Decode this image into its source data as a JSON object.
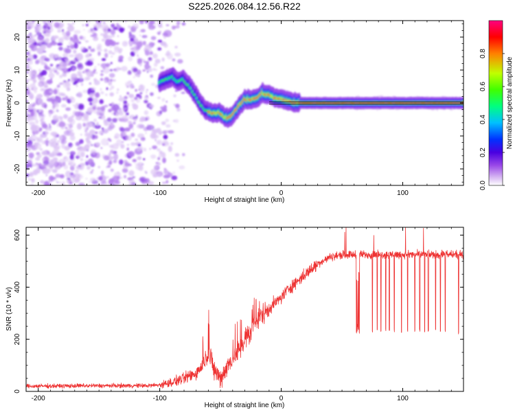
{
  "chart_data": [
    {
      "type": "heatmap",
      "title": "S225.2026.084.12.56.R22",
      "xlabel": "Height of straight line (km)",
      "ylabel": "Frequency (Hz)",
      "xlim": [
        -210,
        150
      ],
      "ylim": [
        -25,
        25
      ],
      "xticks": [
        -200,
        -100,
        0,
        100
      ],
      "yticks": [
        -20,
        -10,
        0,
        10,
        20
      ],
      "colorbar": {
        "label": "Normalized spectral amplitude",
        "range": [
          0,
          1
        ],
        "ticks": [
          0.0,
          0.2,
          0.4,
          0.6,
          0.8
        ],
        "colors": [
          "#ffffff",
          "#d6b6f2",
          "#9b4be8",
          "#4a00e0",
          "#0032ff",
          "#00c0ff",
          "#00ff80",
          "#40ff00",
          "#c0ff00",
          "#ff8000",
          "#ff0000",
          "#ff0080"
        ]
      },
      "ridge": {
        "x": [
          -100,
          -95,
          -90,
          -85,
          -80,
          -75,
          -70,
          -65,
          -60,
          -55,
          -50,
          -45,
          -40,
          -35,
          -30,
          -25,
          -20,
          -15,
          -10,
          -5,
          0,
          5,
          10,
          15,
          20,
          40,
          60,
          80,
          100,
          120,
          150
        ],
        "y": [
          6,
          7,
          8,
          6.5,
          7,
          5,
          2,
          -1,
          -2.5,
          -3,
          -3,
          -4.5,
          -4,
          -1,
          1,
          1,
          1.5,
          3,
          2.5,
          1.5,
          1.2,
          0.8,
          0.3,
          0,
          0,
          0,
          0,
          0,
          0,
          0,
          0
        ]
      },
      "reference_line": {
        "x": [
          -10,
          150
        ],
        "y": 0
      }
    },
    {
      "type": "line",
      "xlabel": "Height of straight line (km)",
      "ylabel": "SNR (10 * v/v)",
      "xlim": [
        -210,
        150
      ],
      "ylim": [
        0,
        630
      ],
      "xticks": [
        -200,
        -100,
        0,
        100
      ],
      "yticks": [
        0,
        200,
        400,
        600
      ],
      "color": "#ee3333",
      "envelope": {
        "x": [
          -210,
          -150,
          -110,
          -100,
          -90,
          -80,
          -70,
          -65,
          -60,
          -55,
          -50,
          -45,
          -40,
          -35,
          -30,
          -25,
          -20,
          -15,
          -10,
          -5,
          0,
          5,
          10,
          20,
          30,
          40,
          50,
          60,
          70,
          80,
          90,
          100,
          110,
          120,
          130,
          140,
          150
        ],
        "y": [
          20,
          22,
          22,
          25,
          35,
          50,
          70,
          100,
          150,
          80,
          50,
          90,
          130,
          160,
          200,
          230,
          270,
          300,
          320,
          340,
          360,
          390,
          410,
          450,
          490,
          515,
          525,
          525,
          525,
          525,
          525,
          525,
          525,
          525,
          525,
          525,
          525
        ]
      },
      "dropouts": [
        {
          "x": 62,
          "y": 220
        },
        {
          "x": 63,
          "y": 215
        },
        {
          "x": 64,
          "y": 225
        },
        {
          "x": 75,
          "y": 225
        },
        {
          "x": 79,
          "y": 230
        },
        {
          "x": 82,
          "y": 228
        },
        {
          "x": 86,
          "y": 230
        },
        {
          "x": 89,
          "y": 232
        },
        {
          "x": 93,
          "y": 228
        },
        {
          "x": 99,
          "y": 225
        },
        {
          "x": 104,
          "y": 230
        },
        {
          "x": 110,
          "y": 228
        },
        {
          "x": 114,
          "y": 230
        },
        {
          "x": 118,
          "y": 226
        },
        {
          "x": 121,
          "y": 230
        },
        {
          "x": 127,
          "y": 232
        },
        {
          "x": 131,
          "y": 225
        },
        {
          "x": 135,
          "y": 228
        },
        {
          "x": 146,
          "y": 218
        }
      ]
    }
  ]
}
